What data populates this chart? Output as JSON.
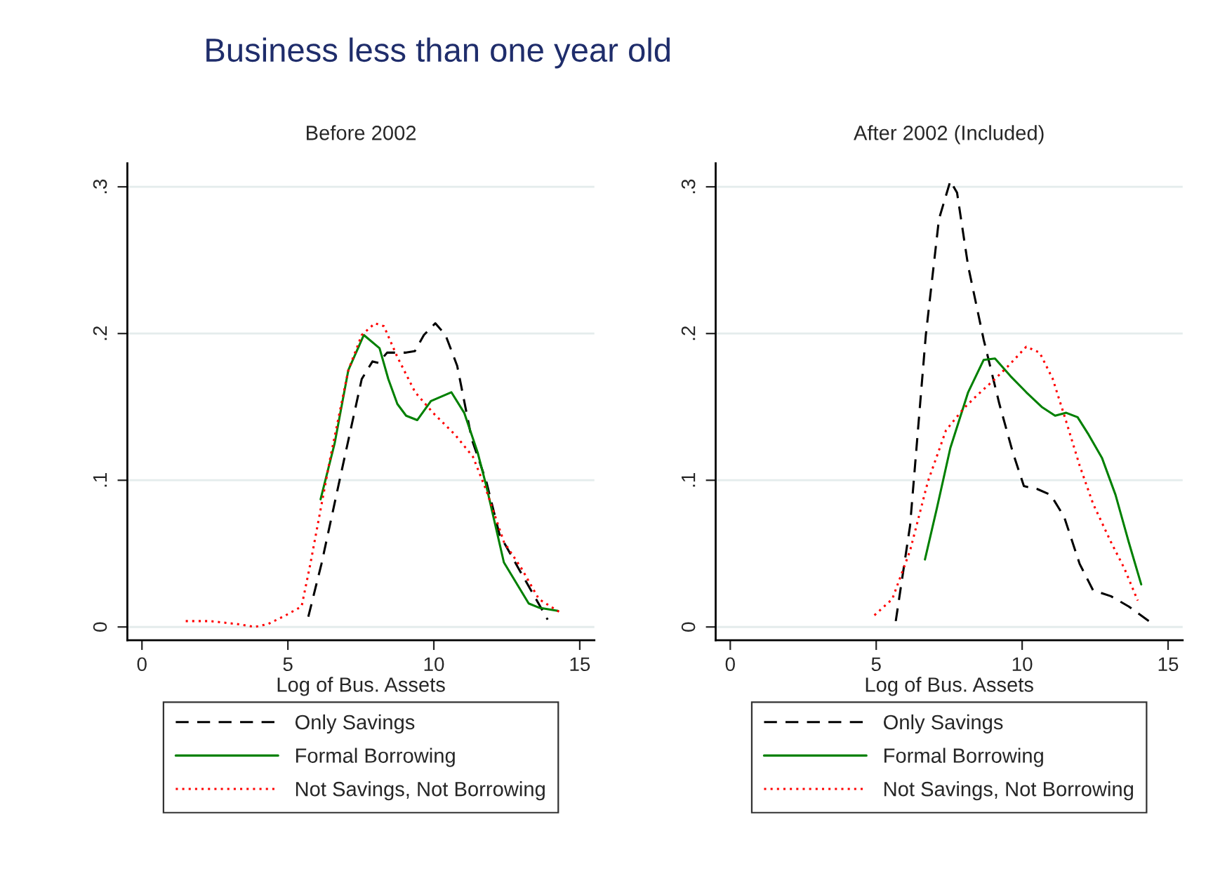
{
  "chart_data": [
    {
      "type": "line",
      "title": "Before 2002",
      "xlabel": "Log of Bus. Assets",
      "annotations": [
        "Business less than one year old"
      ],
      "xlim": [
        -0.5,
        15.5
      ],
      "ylim": [
        -0.009,
        0.316
      ],
      "xticks": [
        0,
        5,
        10,
        15
      ],
      "yticks": [
        {
          "value": 0,
          "label": "0"
        },
        {
          "value": 0.1,
          "label": ".1"
        },
        {
          "value": 0.2,
          "label": ".2"
        },
        {
          "value": 0.3,
          "label": ".3"
        }
      ],
      "grid": "y",
      "legend": "bottom",
      "marker": "none",
      "series": [
        {
          "name": "Only Savings",
          "color": "#000000",
          "line_style": "dashed",
          "x": [
            5.7,
            6.15,
            6.76,
            7.53,
            7.9,
            8.1,
            8.4,
            9.05,
            9.35,
            9.66,
            10.05,
            10.4,
            10.8,
            11.3,
            11.8,
            12.25,
            12.9,
            13.5,
            13.9
          ],
          "values": [
            0.007,
            0.043,
            0.099,
            0.169,
            0.181,
            0.18,
            0.187,
            0.187,
            0.188,
            0.199,
            0.207,
            0.199,
            0.178,
            0.128,
            0.099,
            0.063,
            0.04,
            0.019,
            0.005
          ]
        },
        {
          "name": "Formal Borrowing",
          "color": "#008000",
          "line_style": "solid",
          "x": [
            6.12,
            6.6,
            7.07,
            7.6,
            8.14,
            8.44,
            8.75,
            9.05,
            9.43,
            9.9,
            10.6,
            11.04,
            11.5,
            11.8,
            12.4,
            13.25,
            13.63,
            14.25
          ],
          "values": [
            0.087,
            0.125,
            0.175,
            0.199,
            0.19,
            0.169,
            0.152,
            0.144,
            0.141,
            0.154,
            0.16,
            0.146,
            0.119,
            0.096,
            0.044,
            0.016,
            0.013,
            0.011
          ]
        },
        {
          "name": "Not Savings, Not Borrowing",
          "color": "#ff0000",
          "line_style": "dotted",
          "x": [
            1.5,
            2.34,
            3.25,
            3.86,
            4.32,
            4.93,
            5.47,
            5.77,
            6.46,
            7.07,
            7.53,
            7.98,
            8.29,
            8.75,
            9.36,
            9.97,
            10.73,
            11.34,
            11.8,
            12.4,
            13.0,
            13.6,
            14.4
          ],
          "values": [
            0.004,
            0.004,
            0.002,
            0.0,
            0.002,
            0.008,
            0.014,
            0.043,
            0.116,
            0.175,
            0.199,
            0.207,
            0.205,
            0.184,
            0.16,
            0.146,
            0.131,
            0.116,
            0.093,
            0.058,
            0.04,
            0.019,
            0.009
          ]
        }
      ]
    },
    {
      "type": "line",
      "title": "After 2002 (Included)",
      "xlabel": "Log of Bus. Assets",
      "xlim": [
        -0.5,
        15.5
      ],
      "ylim": [
        -0.009,
        0.316
      ],
      "xticks": [
        0,
        5,
        10,
        15
      ],
      "yticks": [
        {
          "value": 0,
          "label": "0"
        },
        {
          "value": 0.1,
          "label": ".1"
        },
        {
          "value": 0.2,
          "label": ".2"
        },
        {
          "value": 0.3,
          "label": ".3"
        }
      ],
      "grid": "y",
      "legend": "bottom",
      "marker": "none",
      "series": [
        {
          "name": "Only Savings",
          "color": "#000000",
          "line_style": "dashed",
          "x": [
            5.67,
            6.16,
            6.7,
            7.15,
            7.54,
            7.77,
            8.15,
            8.68,
            9.22,
            9.68,
            10.06,
            10.52,
            10.98,
            11.44,
            11.97,
            12.43,
            13.04,
            13.65,
            14.34
          ],
          "values": [
            0.004,
            0.069,
            0.199,
            0.278,
            0.304,
            0.296,
            0.246,
            0.196,
            0.152,
            0.119,
            0.096,
            0.094,
            0.09,
            0.075,
            0.043,
            0.025,
            0.021,
            0.014,
            0.004
          ]
        },
        {
          "name": "Formal Borrowing",
          "color": "#008000",
          "line_style": "solid",
          "x": [
            6.67,
            7.08,
            7.54,
            8.15,
            8.68,
            9.07,
            9.6,
            10.14,
            10.67,
            11.13,
            11.51,
            11.9,
            12.28,
            12.74,
            13.2,
            13.65,
            14.08
          ],
          "values": [
            0.046,
            0.081,
            0.122,
            0.16,
            0.182,
            0.183,
            0.171,
            0.16,
            0.15,
            0.144,
            0.146,
            0.143,
            0.131,
            0.115,
            0.09,
            0.058,
            0.029
          ]
        },
        {
          "name": "Not Savings, Not Borrowing",
          "color": "#ff0000",
          "line_style": "dotted",
          "x": [
            4.94,
            5.55,
            6.16,
            6.77,
            7.39,
            8.0,
            8.46,
            9.07,
            9.53,
            10.14,
            10.6,
            11.05,
            11.51,
            11.97,
            12.43,
            13.04,
            13.5,
            13.96
          ],
          "values": [
            0.008,
            0.019,
            0.052,
            0.099,
            0.134,
            0.149,
            0.158,
            0.169,
            0.178,
            0.191,
            0.187,
            0.169,
            0.14,
            0.11,
            0.084,
            0.058,
            0.04,
            0.018
          ]
        }
      ]
    }
  ]
}
